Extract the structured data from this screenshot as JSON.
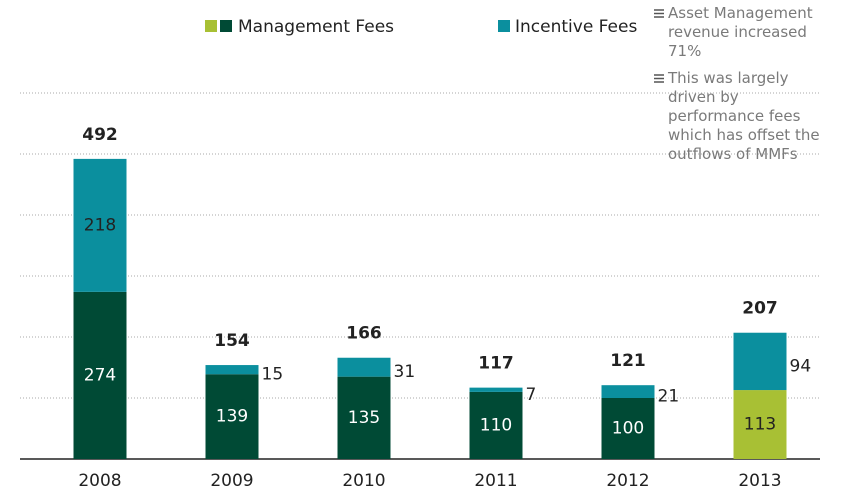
{
  "chart_data": {
    "type": "stacked_bar",
    "categories": [
      "2008",
      "2009",
      "2010",
      "2011",
      "2012",
      "2013"
    ],
    "series": [
      {
        "name": "Management Fees",
        "color": "#004a35",
        "colors": [
          "#004a35",
          "#004a35",
          "#004a35",
          "#004a35",
          "#004a35",
          "#a8c034"
        ],
        "values": [
          274,
          139,
          135,
          110,
          100,
          113
        ]
      },
      {
        "name": "Incentive Fees",
        "color": "#0b8f9e",
        "values": [
          218,
          15,
          31,
          7,
          21,
          94
        ]
      }
    ],
    "totals": [
      492,
      154,
      166,
      117,
      121,
      207
    ],
    "ylim": [
      0,
      600
    ],
    "yticks": [
      100,
      200,
      300,
      400,
      500,
      600
    ],
    "grid": true,
    "annotations": [
      "Asset Management revenue increased 71%",
      "This was largely driven by performance fees which has offset the outflows of MMFs"
    ]
  }
}
